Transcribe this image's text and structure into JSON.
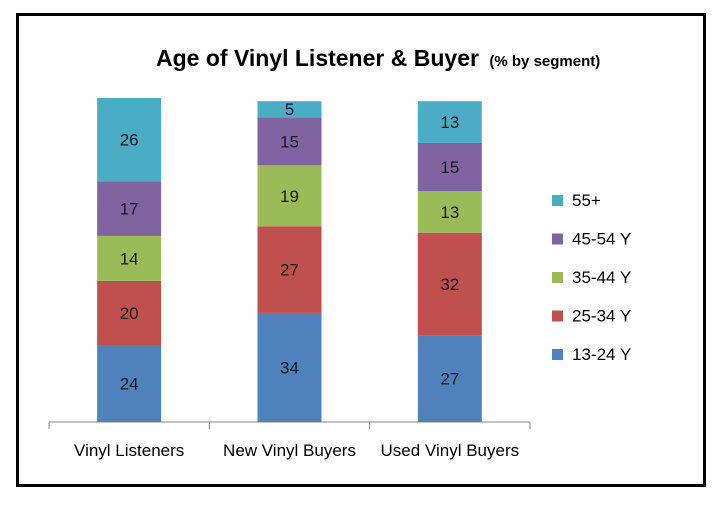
{
  "chart_data": {
    "type": "bar",
    "stacked": true,
    "title": "Age of Vinyl Listener & Buyer",
    "subtitle": "(% by segment)",
    "categories": [
      "Vinyl Listeners",
      "New Vinyl Buyers",
      "Used Vinyl Buyers"
    ],
    "series": [
      {
        "name": "13-24 Y",
        "color": "#4F81BD",
        "values": [
          24,
          34,
          27
        ]
      },
      {
        "name": "25-34 Y",
        "color": "#C0504D",
        "values": [
          20,
          27,
          32
        ]
      },
      {
        "name": "35-44 Y",
        "color": "#9BBB59",
        "values": [
          14,
          19,
          13
        ]
      },
      {
        "name": "45-54 Y",
        "color": "#8064A2",
        "values": [
          17,
          15,
          15
        ]
      },
      {
        "name": "55+",
        "color": "#4BACC6",
        "values": [
          26,
          5,
          13
        ]
      }
    ],
    "ylim": [
      0,
      101
    ],
    "grid": false,
    "legend_position": "right"
  }
}
